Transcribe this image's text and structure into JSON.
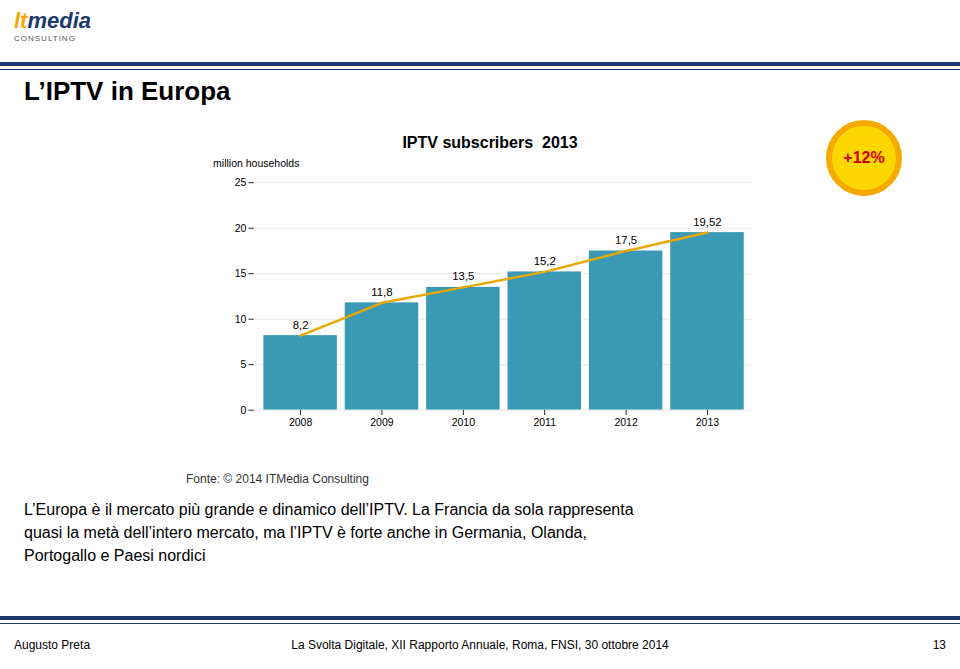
{
  "chart_data": {
    "type": "bar",
    "title": "IPTV subscribers  2013",
    "categories": [
      "2008",
      "2009",
      "2010",
      "2011",
      "2012",
      "2013"
    ],
    "series": [
      {
        "type": "bar",
        "color": "#3a9ab5",
        "values": [
          8.2,
          11.8,
          13.5,
          15.2,
          17.5,
          19.52
        ],
        "value_labels": [
          "8,2",
          "11,8",
          "13,5",
          "15,2",
          "17,5",
          "19,52"
        ]
      },
      {
        "type": "line",
        "color": "#e8a800",
        "values": [
          8.2,
          11.8,
          13.5,
          15.2,
          17.5,
          19.52
        ]
      }
    ],
    "ylabel": "million households",
    "ylim": [
      0,
      25
    ],
    "yticks": [
      0,
      5,
      10,
      15,
      20,
      25
    ],
    "grid": true,
    "data_labels": true,
    "annotations": [
      "lt",
      "media",
      "CONSULTING",
      "L’IPTV in Europa",
      "+12%",
      "Fonte: © 2014 ITMedia Consulting",
      "L’Europa è il mercato più grande e dinamico dell’IPTV. La Francia da sola rappresenta",
      "quasi la metà dell’intero mercato, ma l’IPTV è forte anche in Germania, Olanda,",
      "Portogallo e Paesi nordici",
      "Augusto Preta",
      "La Svolta Digitale, XII Rapporto Annuale, Roma, FNSI, 30 ottobre 2014",
      "13"
    ]
  }
}
